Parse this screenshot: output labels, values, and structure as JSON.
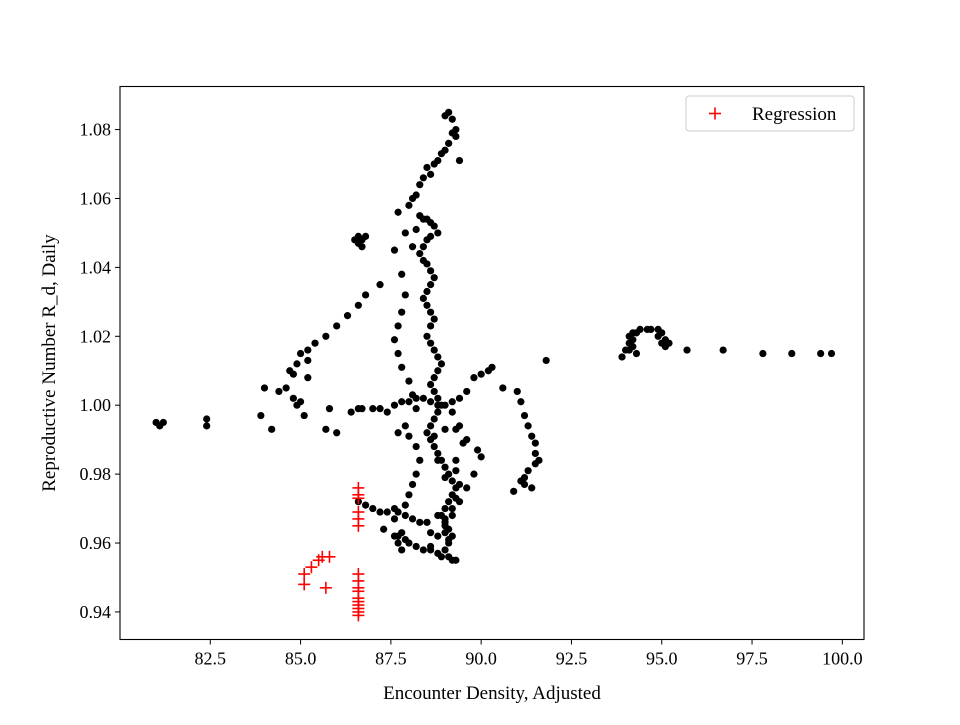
{
  "chart_data": {
    "type": "scatter",
    "title": "",
    "xlabel": "Encounter Density, Adjusted",
    "ylabel": "Reproductive Number R_d, Daily",
    "xlim": [
      80.0,
      100.6
    ],
    "ylim": [
      0.932,
      1.0925
    ],
    "xticks": [
      82.5,
      85.0,
      87.5,
      90.0,
      92.5,
      95.0,
      97.5,
      100.0
    ],
    "xtick_labels": [
      "82.5",
      "85.0",
      "87.5",
      "90.0",
      "92.5",
      "95.0",
      "97.5",
      "100.0"
    ],
    "yticks": [
      0.94,
      0.96,
      0.98,
      1.0,
      1.02,
      1.04,
      1.06,
      1.08
    ],
    "ytick_labels": [
      "0.94",
      "0.96",
      "0.98",
      "1.00",
      "1.02",
      "1.04",
      "1.06",
      "1.08"
    ],
    "grid": false,
    "legend_position": "top-right",
    "series": [
      {
        "name": "",
        "marker": "circle",
        "color": "#000000",
        "points": [
          [
            81.0,
            0.995
          ],
          [
            81.1,
            0.994
          ],
          [
            81.2,
            0.995
          ],
          [
            82.4,
            0.994
          ],
          [
            82.4,
            0.996
          ],
          [
            83.9,
            0.997
          ],
          [
            84.0,
            1.005
          ],
          [
            84.2,
            0.993
          ],
          [
            84.4,
            1.004
          ],
          [
            84.6,
            1.005
          ],
          [
            84.7,
            1.01
          ],
          [
            84.8,
            1.009
          ],
          [
            84.9,
            1.012
          ],
          [
            85.0,
            1.015
          ],
          [
            85.2,
            1.013
          ],
          [
            85.2,
            1.016
          ],
          [
            85.4,
            1.018
          ],
          [
            85.7,
            1.02
          ],
          [
            86.0,
            1.023
          ],
          [
            86.3,
            1.026
          ],
          [
            86.6,
            1.029
          ],
          [
            86.8,
            1.032
          ],
          [
            87.2,
            1.035
          ],
          [
            87.6,
            1.045
          ],
          [
            87.7,
            1.056
          ],
          [
            87.9,
            1.05
          ],
          [
            88.0,
            1.058
          ],
          [
            88.1,
            1.06
          ],
          [
            88.2,
            1.061
          ],
          [
            88.3,
            1.064
          ],
          [
            88.4,
            1.066
          ],
          [
            88.5,
            1.069
          ],
          [
            88.6,
            1.067
          ],
          [
            88.7,
            1.07
          ],
          [
            88.8,
            1.071
          ],
          [
            88.9,
            1.073
          ],
          [
            89.0,
            1.074
          ],
          [
            89.1,
            1.076
          ],
          [
            89.2,
            1.079
          ],
          [
            89.3,
            1.08
          ],
          [
            89.0,
            1.084
          ],
          [
            89.1,
            1.085
          ],
          [
            89.2,
            1.083
          ],
          [
            89.3,
            1.078
          ],
          [
            89.4,
            1.071
          ],
          [
            84.8,
            1.002
          ],
          [
            84.9,
            1.0
          ],
          [
            85.0,
            1.001
          ],
          [
            85.1,
            0.997
          ],
          [
            85.2,
            1.008
          ],
          [
            85.7,
            0.993
          ],
          [
            85.8,
            0.999
          ],
          [
            86.0,
            0.992
          ],
          [
            86.4,
            0.998
          ],
          [
            86.6,
            0.999
          ],
          [
            86.7,
            0.999
          ],
          [
            87.0,
            0.999
          ],
          [
            87.2,
            0.999
          ],
          [
            87.4,
            0.998
          ],
          [
            87.6,
            1.0
          ],
          [
            87.8,
            1.001
          ],
          [
            88.0,
            1.001
          ],
          [
            88.2,
            1.002
          ],
          [
            88.4,
            1.002
          ],
          [
            88.6,
            1.001
          ],
          [
            88.8,
            1.0
          ],
          [
            89.0,
            1.0
          ],
          [
            89.2,
            1.001
          ],
          [
            89.4,
            1.002
          ],
          [
            89.6,
            1.004
          ],
          [
            89.8,
            1.008
          ],
          [
            90.0,
            1.009
          ],
          [
            90.2,
            1.01
          ],
          [
            90.3,
            1.011
          ],
          [
            90.6,
            1.005
          ],
          [
            91.0,
            1.004
          ],
          [
            91.1,
            1.001
          ],
          [
            91.2,
            0.997
          ],
          [
            91.3,
            0.994
          ],
          [
            91.4,
            0.991
          ],
          [
            91.5,
            0.989
          ],
          [
            91.5,
            0.986
          ],
          [
            91.6,
            0.984
          ],
          [
            91.5,
            0.983
          ],
          [
            91.3,
            0.981
          ],
          [
            91.2,
            0.979
          ],
          [
            91.1,
            0.978
          ],
          [
            91.2,
            0.977
          ],
          [
            91.4,
            0.976
          ],
          [
            90.9,
            0.975
          ],
          [
            91.8,
            1.013
          ],
          [
            86.6,
            1.047
          ],
          [
            86.7,
            1.048
          ],
          [
            86.6,
            1.049
          ],
          [
            86.7,
            1.046
          ],
          [
            86.8,
            1.049
          ],
          [
            86.5,
            1.048
          ],
          [
            88.1,
            1.046
          ],
          [
            88.2,
            1.051
          ],
          [
            88.3,
            1.055
          ],
          [
            88.4,
            1.054
          ],
          [
            88.5,
            1.054
          ],
          [
            88.6,
            1.053
          ],
          [
            88.7,
            1.052
          ],
          [
            88.8,
            1.05
          ],
          [
            88.6,
            1.049
          ],
          [
            88.5,
            1.048
          ],
          [
            88.4,
            1.046
          ],
          [
            88.3,
            1.044
          ],
          [
            88.4,
            1.042
          ],
          [
            88.5,
            1.041
          ],
          [
            88.6,
            1.039
          ],
          [
            88.7,
            1.037
          ],
          [
            88.6,
            1.035
          ],
          [
            88.5,
            1.033
          ],
          [
            88.4,
            1.031
          ],
          [
            88.5,
            1.029
          ],
          [
            88.6,
            1.027
          ],
          [
            88.7,
            1.025
          ],
          [
            88.6,
            1.023
          ],
          [
            88.5,
            1.02
          ],
          [
            88.6,
            1.018
          ],
          [
            88.7,
            1.016
          ],
          [
            88.8,
            1.014
          ],
          [
            88.9,
            1.012
          ],
          [
            88.8,
            1.01
          ],
          [
            88.7,
            1.008
          ],
          [
            88.6,
            1.006
          ],
          [
            88.7,
            1.004
          ],
          [
            88.8,
            1.002
          ],
          [
            88.9,
            1.0
          ],
          [
            88.8,
            0.998
          ],
          [
            88.7,
            0.996
          ],
          [
            88.6,
            0.994
          ],
          [
            88.5,
            0.992
          ],
          [
            88.6,
            0.99
          ],
          [
            88.7,
            0.988
          ],
          [
            88.8,
            0.986
          ],
          [
            88.9,
            0.984
          ],
          [
            89.0,
            0.982
          ],
          [
            89.1,
            0.98
          ],
          [
            89.2,
            0.978
          ],
          [
            89.3,
            0.976
          ],
          [
            89.2,
            0.974
          ],
          [
            89.1,
            0.972
          ],
          [
            89.0,
            0.97
          ],
          [
            88.9,
            0.968
          ],
          [
            89.0,
            0.966
          ],
          [
            89.1,
            0.964
          ],
          [
            89.2,
            0.962
          ],
          [
            89.1,
            0.96
          ],
          [
            89.0,
            0.958
          ],
          [
            89.1,
            0.956
          ],
          [
            89.2,
            0.955
          ],
          [
            89.3,
            0.955
          ],
          [
            88.9,
            0.956
          ],
          [
            88.8,
            0.957
          ],
          [
            87.8,
            1.038
          ],
          [
            87.9,
            1.032
          ],
          [
            87.8,
            1.027
          ],
          [
            87.7,
            1.023
          ],
          [
            87.6,
            1.019
          ],
          [
            87.7,
            1.015
          ],
          [
            87.8,
            1.011
          ],
          [
            88.0,
            1.007
          ],
          [
            88.1,
            1.003
          ],
          [
            88.2,
            0.999
          ],
          [
            87.9,
            0.994
          ],
          [
            87.7,
            0.992
          ],
          [
            88.0,
            0.991
          ],
          [
            88.2,
            0.988
          ],
          [
            88.3,
            0.984
          ],
          [
            88.2,
            0.98
          ],
          [
            88.1,
            0.977
          ],
          [
            88.0,
            0.974
          ],
          [
            87.9,
            0.971
          ],
          [
            87.7,
            0.969
          ],
          [
            87.6,
            0.967
          ],
          [
            87.8,
            0.963
          ],
          [
            87.9,
            0.961
          ],
          [
            88.0,
            0.96
          ],
          [
            88.2,
            0.959
          ],
          [
            88.4,
            0.958
          ],
          [
            88.6,
            0.959
          ],
          [
            88.8,
            0.962
          ],
          [
            89.0,
            0.965
          ],
          [
            89.2,
            0.968
          ],
          [
            89.4,
            0.972
          ],
          [
            89.6,
            0.976
          ],
          [
            89.8,
            0.98
          ],
          [
            90.0,
            0.985
          ],
          [
            89.9,
            0.987
          ],
          [
            89.6,
            0.99
          ],
          [
            89.3,
            0.993
          ],
          [
            89.0,
            0.993
          ],
          [
            88.7,
            0.991
          ],
          [
            88.8,
            0.984
          ],
          [
            89.0,
            0.979
          ],
          [
            89.3,
            0.984
          ],
          [
            89.5,
            0.989
          ],
          [
            89.4,
            0.994
          ],
          [
            89.2,
            0.998
          ],
          [
            89.0,
            0.967
          ],
          [
            89.2,
            0.97
          ],
          [
            89.3,
            0.973
          ],
          [
            89.4,
            0.977
          ],
          [
            89.3,
            0.981
          ],
          [
            86.6,
            0.972
          ],
          [
            86.8,
            0.971
          ],
          [
            87.0,
            0.97
          ],
          [
            87.2,
            0.969
          ],
          [
            87.4,
            0.969
          ],
          [
            87.6,
            0.97
          ],
          [
            87.9,
            0.968
          ],
          [
            88.1,
            0.967
          ],
          [
            88.3,
            0.966
          ],
          [
            88.5,
            0.966
          ],
          [
            87.3,
            0.964
          ],
          [
            87.6,
            0.962
          ],
          [
            87.7,
            0.962
          ],
          [
            87.7,
            0.96
          ],
          [
            87.8,
            0.958
          ],
          [
            88.6,
            0.963
          ],
          [
            88.8,
            0.968
          ],
          [
            89.0,
            0.963
          ],
          [
            89.1,
            0.961
          ],
          [
            88.6,
            0.958
          ],
          [
            93.9,
            1.014
          ],
          [
            94.0,
            1.016
          ],
          [
            94.1,
            1.018
          ],
          [
            94.2,
            1.019
          ],
          [
            94.2,
            1.021
          ],
          [
            94.1,
            1.02
          ],
          [
            94.3,
            1.021
          ],
          [
            94.4,
            1.022
          ],
          [
            94.6,
            1.022
          ],
          [
            94.7,
            1.022
          ],
          [
            94.9,
            1.022
          ],
          [
            95.0,
            1.021
          ],
          [
            95.1,
            1.019
          ],
          [
            95.0,
            1.018
          ],
          [
            94.9,
            1.02
          ],
          [
            94.1,
            1.016
          ],
          [
            94.2,
            1.017
          ],
          [
            94.3,
            1.015
          ],
          [
            95.2,
            1.018
          ],
          [
            95.1,
            1.017
          ],
          [
            95.7,
            1.016
          ],
          [
            96.7,
            1.016
          ],
          [
            97.8,
            1.015
          ],
          [
            98.6,
            1.015
          ],
          [
            99.4,
            1.015
          ],
          [
            99.7,
            1.015
          ]
        ]
      },
      {
        "name": "Regression",
        "marker": "plus",
        "color": "#ff0000",
        "points": [
          [
            85.1,
            0.948
          ],
          [
            85.1,
            0.951
          ],
          [
            85.3,
            0.953
          ],
          [
            85.5,
            0.955
          ],
          [
            85.6,
            0.956
          ],
          [
            85.8,
            0.956
          ],
          [
            85.7,
            0.947
          ],
          [
            86.6,
            0.976
          ],
          [
            86.6,
            0.974
          ],
          [
            86.6,
            0.973
          ],
          [
            86.6,
            0.969
          ],
          [
            86.6,
            0.967
          ],
          [
            86.6,
            0.965
          ],
          [
            86.6,
            0.951
          ],
          [
            86.6,
            0.949
          ],
          [
            86.6,
            0.947
          ],
          [
            86.6,
            0.946
          ],
          [
            86.6,
            0.944
          ],
          [
            86.6,
            0.943
          ],
          [
            86.6,
            0.942
          ],
          [
            86.6,
            0.941
          ],
          [
            86.6,
            0.94
          ],
          [
            86.6,
            0.939
          ]
        ]
      }
    ]
  }
}
